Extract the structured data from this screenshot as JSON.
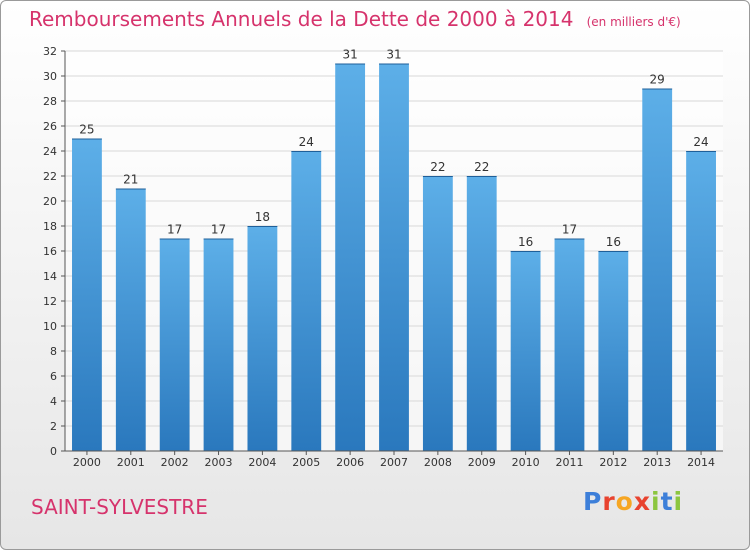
{
  "colors": {
    "bar": "#4fa3e0",
    "bar_dark": "#2a78bd",
    "title": "#d6336c",
    "grid": "#d8d8d8"
  },
  "chart_data": {
    "type": "bar",
    "title": "Remboursements Annuels de la Dette de 2000 à 2014",
    "subtitle": "(en milliers d'€)",
    "xlabel": "",
    "ylabel": "",
    "categories": [
      "2000",
      "2001",
      "2002",
      "2003",
      "2004",
      "2005",
      "2006",
      "2007",
      "2008",
      "2009",
      "2010",
      "2011",
      "2012",
      "2013",
      "2014"
    ],
    "values": [
      25,
      21,
      17,
      17,
      18,
      24,
      31,
      31,
      22,
      22,
      16,
      17,
      16,
      29,
      24
    ],
    "ylim": [
      0,
      32
    ],
    "yticks": [
      0,
      2,
      4,
      6,
      8,
      10,
      12,
      14,
      16,
      18,
      20,
      22,
      24,
      26,
      28,
      30,
      32
    ],
    "grid": true,
    "data_labels": true
  },
  "footer": {
    "commune": "SAINT-SYLVESTRE",
    "logo_text": "Proxiti",
    "logo_letters": [
      {
        "ch": "P",
        "color": "#3d7fd9"
      },
      {
        "ch": "r",
        "color": "#e8432f"
      },
      {
        "ch": "o",
        "color": "#f6a623"
      },
      {
        "ch": "x",
        "color": "#e8432f"
      },
      {
        "ch": "i",
        "color": "#8cc63f"
      },
      {
        "ch": "t",
        "color": "#3d7fd9"
      },
      {
        "ch": "i",
        "color": "#8cc63f"
      }
    ]
  }
}
